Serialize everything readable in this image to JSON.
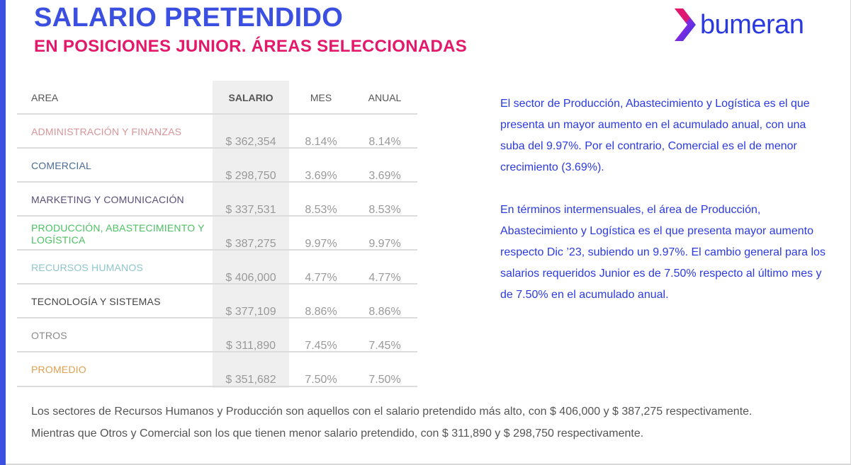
{
  "header": {
    "title": "SALARIO PRETENDIDO",
    "subtitle": "EN POSICIONES JUNIOR. ÁREAS SELECCIONADAS"
  },
  "logo": {
    "text": "bumeran",
    "icon": "chevron-logo-icon",
    "colors": [
      "#e3186a",
      "#7a2be0",
      "#2b3ae0"
    ]
  },
  "table": {
    "columns": {
      "area": "AREA",
      "salary": "SALARIO",
      "month": "MES",
      "annual": "ANUAL"
    },
    "rows": [
      {
        "area": "ADMINISTRACIÓN Y FINANZAS",
        "salary": "$ 362,354",
        "month": "8.14%",
        "annual": "8.14%",
        "color": "#d9959a"
      },
      {
        "area": "COMERCIAL",
        "salary": "$ 298,750",
        "month": "3.69%",
        "annual": "3.69%",
        "color": "#4a6c96"
      },
      {
        "area": "MARKETING Y COMUNICACIÓN",
        "salary": "$ 337,531",
        "month": "8.53%",
        "annual": "8.53%",
        "color": "#5a4e7a"
      },
      {
        "area": "PRODUCCIÓN, ABASTECIMIENTO Y LOGÍSTICA",
        "salary": "$ 387,275",
        "month": "9.97%",
        "annual": "9.97%",
        "color": "#4cc262"
      },
      {
        "area": "RECURSOS HUMANOS",
        "salary": "$ 406,000",
        "month": "4.77%",
        "annual": "4.77%",
        "color": "#8ec6cc"
      },
      {
        "area": "TECNOLOGÍA Y SISTEMAS",
        "salary": "$ 377,109",
        "month": "8.86%",
        "annual": "8.86%",
        "color": "#444444"
      },
      {
        "area": "OTROS",
        "salary": "$ 311,890",
        "month": "7.45%",
        "annual": "7.45%",
        "color": "#8a8a8a"
      },
      {
        "area": "PROMEDIO",
        "salary": "$ 351,682",
        "month": "7.50%",
        "annual": "7.50%",
        "color": "#e0a050"
      }
    ]
  },
  "side_text": {
    "paragraph1": "El sector de Producción, Abastecimiento y Logística es el que presenta un mayor aumento en el acumulado anual, con una suba del 9.97%. Por el contrario, Comercial es el de menor crecimiento (3.69%).",
    "paragraph2": "En términos intermensuales, el área de Producción, Abastecimiento y Logística es el que presenta mayor aumento respecto Dic ’23, subiendo un 9.97%. El cambio general para los salarios requeridos Junior es de 7.50% respecto al último mes y de 7.50% en el acumulado anual."
  },
  "footer": {
    "line1": "Los sectores de Recursos Humanos y Producción son aquellos con el salario pretendido más alto, con $ 406,000 y $ 387,275 respectivamente.",
    "line2": "Mientras que Otros y Comercial son los que tienen menor salario pretendido, con $ 311,890 y $ 298,750 respectivamente."
  }
}
